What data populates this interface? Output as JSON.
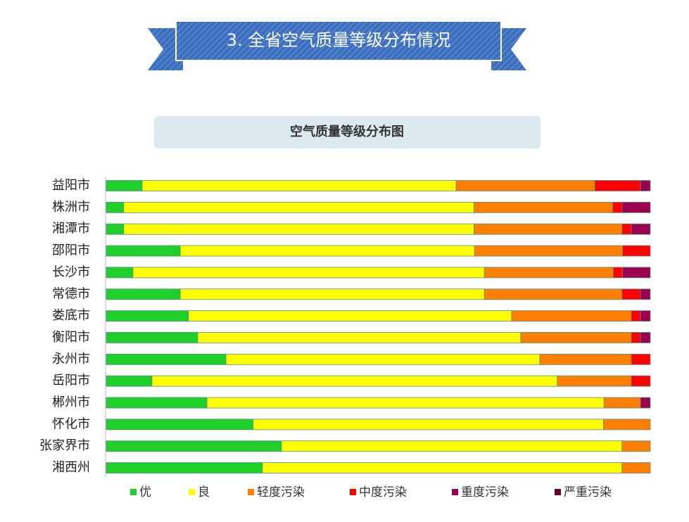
{
  "banner": {
    "title": "3. 全省空气质量等级分布情况"
  },
  "chart_data": {
    "type": "stacked-barh",
    "title": "空气质量等级分布图",
    "categories": [
      "益阳市",
      "株洲市",
      "湘潭市",
      "邵阳市",
      "长沙市",
      "常德市",
      "娄底市",
      "衡阳市",
      "永州市",
      "岳阳市",
      "郴州市",
      "怀化市",
      "张家界市",
      "湘西州"
    ],
    "xlim": [
      0,
      100
    ],
    "series": [
      {
        "name": "优",
        "color": "#1fcf2a",
        "values": [
          6.6,
          3.2,
          3.2,
          13.6,
          4.9,
          13.6,
          15.1,
          16.8,
          22.0,
          8.4,
          18.5,
          27.0,
          32.2,
          28.7
        ]
      },
      {
        "name": "良",
        "color": "#ffff00",
        "values": [
          57.7,
          64.4,
          64.4,
          54.1,
          64.6,
          55.9,
          59.4,
          59.4,
          57.7,
          74.5,
          73.0,
          64.4,
          62.6,
          66.1
        ]
      },
      {
        "name": "轻度污染",
        "color": "#ff8000",
        "values": [
          25.5,
          25.5,
          27.2,
          27.2,
          23.7,
          25.3,
          22.0,
          20.3,
          16.8,
          13.6,
          6.7,
          8.6,
          5.2,
          5.2
        ]
      },
      {
        "name": "中度污染",
        "color": "#ff0000",
        "values": [
          8.4,
          1.7,
          1.7,
          5.1,
          1.7,
          3.4,
          1.7,
          1.7,
          3.5,
          3.5,
          0,
          0,
          0,
          0
        ]
      },
      {
        "name": "重度污染",
        "color": "#99004d",
        "values": [
          1.8,
          5.2,
          3.5,
          0,
          5.1,
          1.8,
          1.8,
          1.8,
          0,
          0,
          1.8,
          0,
          0,
          0
        ]
      },
      {
        "name": "严重污染",
        "color": "#660033",
        "values": [
          0,
          0,
          0,
          0,
          0,
          0,
          0,
          0,
          0,
          0,
          0,
          0,
          0,
          0
        ]
      }
    ]
  }
}
